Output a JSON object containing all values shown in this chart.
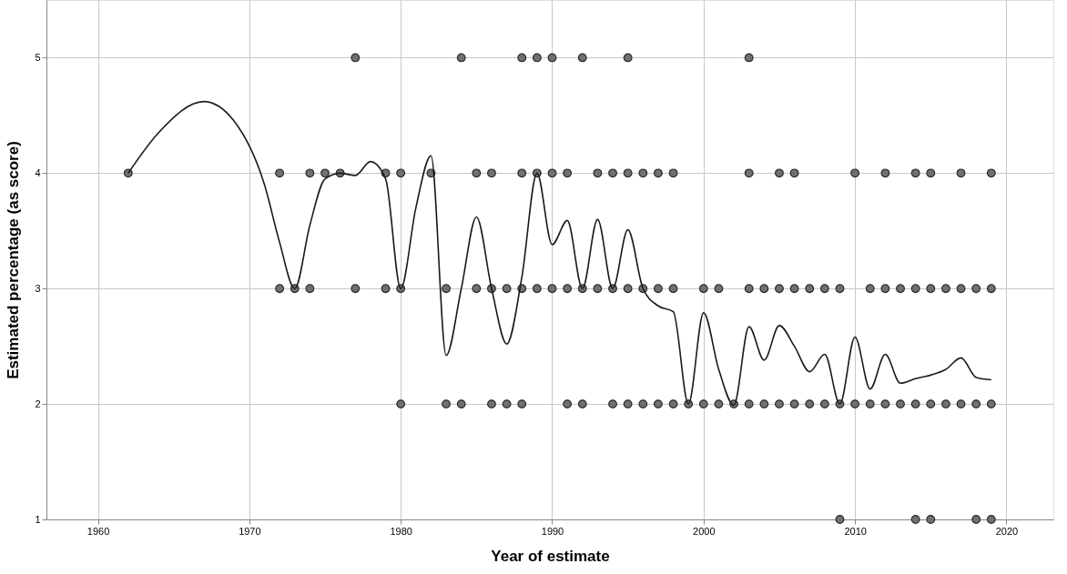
{
  "chart_data": {
    "type": "scatter",
    "xlabel": "Year of estimate",
    "ylabel": "Estimated percentage (as score)",
    "xlim": [
      1956.6,
      2023.1
    ],
    "ylim": [
      1,
      5.5
    ],
    "xticks": [
      1960,
      1970,
      1980,
      1990,
      2000,
      2010,
      2020
    ],
    "yticks": [
      1,
      2,
      3,
      4,
      5
    ],
    "grid": true,
    "marker": "circle",
    "series": [
      {
        "color": "#707070",
        "x": [
          1977,
          1984,
          1988,
          1989,
          1990,
          1992,
          1995,
          2003,
          1962,
          1972,
          1974,
          1975,
          1976,
          1979,
          1980,
          1982,
          1985,
          1986,
          1988,
          1989,
          1990,
          1991,
          1993,
          1994,
          1995,
          1996,
          1997,
          1998,
          2003,
          2005,
          2006,
          2010,
          2012,
          2014,
          2015,
          2017,
          2019,
          1972,
          1973,
          1974,
          1977,
          1979,
          1980,
          1983,
          1985,
          1986,
          1987,
          1988,
          1989,
          1990,
          1991,
          1992,
          1993,
          1994,
          1995,
          1996,
          1997,
          1998,
          2000,
          2001,
          2003,
          2004,
          2005,
          2006,
          2007,
          2008,
          2009,
          2011,
          2012,
          2013,
          2014,
          2015,
          2016,
          2017,
          2018,
          2019,
          1980,
          1983,
          1984,
          1986,
          1987,
          1988,
          1991,
          1992,
          1994,
          1995,
          1996,
          1997,
          1998,
          1999,
          2000,
          2001,
          2002,
          2003,
          2004,
          2005,
          2006,
          2007,
          2008,
          2009,
          2010,
          2011,
          2012,
          2013,
          2014,
          2015,
          2016,
          2017,
          2018,
          2019,
          2009,
          2014,
          2015,
          2018,
          2019
        ],
        "values": [
          5,
          5,
          5,
          5,
          5,
          5,
          5,
          5,
          4,
          4,
          4,
          4,
          4,
          4,
          4,
          4,
          4,
          4,
          4,
          4,
          4,
          4,
          4,
          4,
          4,
          4,
          4,
          4,
          4,
          4,
          4,
          4,
          4,
          4,
          4,
          4,
          4,
          3,
          3,
          3,
          3,
          3,
          3,
          3,
          3,
          3,
          3,
          3,
          3,
          3,
          3,
          3,
          3,
          3,
          3,
          3,
          3,
          3,
          3,
          3,
          3,
          3,
          3,
          3,
          3,
          3,
          3,
          3,
          3,
          3,
          3,
          3,
          3,
          3,
          3,
          3,
          2,
          2,
          2,
          2,
          2,
          2,
          2,
          2,
          2,
          2,
          2,
          2,
          2,
          2,
          2,
          2,
          2,
          2,
          2,
          2,
          2,
          2,
          2,
          2,
          2,
          2,
          2,
          2,
          2,
          2,
          2,
          2,
          2,
          2,
          1,
          1,
          1,
          1,
          1
        ]
      },
      {
        "type": "line",
        "color": "#1a1a1a",
        "marker": "none",
        "line_style": "solid",
        "x": [
          1962,
          1964,
          1967,
          1969,
          1971,
          1972,
          1973,
          1974,
          1975,
          1976,
          1977,
          1978,
          1979,
          1980,
          1981,
          1982,
          1983,
          1984,
          1985,
          1986,
          1987,
          1988,
          1989,
          1990,
          1991,
          1992,
          1993,
          1994,
          1995,
          1996,
          1997,
          1998,
          1999,
          2000,
          2001,
          2002,
          2003,
          2004,
          2005,
          2006,
          2007,
          2008,
          2009,
          2010,
          2011,
          2012,
          2013,
          2014,
          2015,
          2016,
          2017,
          2018,
          2019
        ],
        "values": [
          4.0,
          4.35,
          4.62,
          4.45,
          3.9,
          3.4,
          3.0,
          3.55,
          3.95,
          4.0,
          3.98,
          4.1,
          3.95,
          3.0,
          3.7,
          4.15,
          2.42,
          3.0,
          3.62,
          3.0,
          2.52,
          3.1,
          4.0,
          3.38,
          3.59,
          3.0,
          3.6,
          3.0,
          3.51,
          3.0,
          2.85,
          2.8,
          2.0,
          2.79,
          2.3,
          1.99,
          2.67,
          2.38,
          2.68,
          2.5,
          2.28,
          2.43,
          2.0,
          2.58,
          2.13,
          2.43,
          2.18,
          2.22,
          2.25,
          2.3,
          2.4,
          2.23,
          2.21
        ]
      }
    ]
  }
}
